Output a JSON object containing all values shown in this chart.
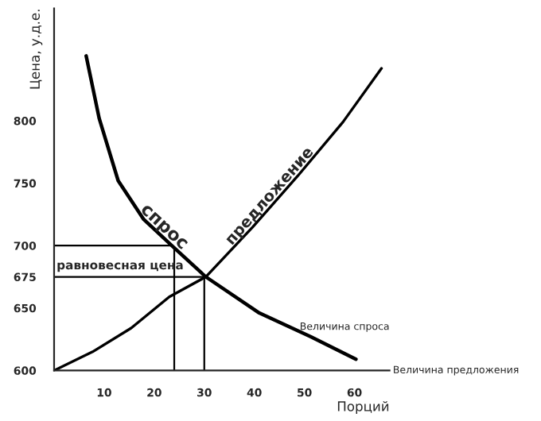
{
  "chart_data": {
    "type": "line",
    "ylabel": "Цена, у.д.е.",
    "xlabel": "Порций",
    "xlim": [
      0,
      67
    ],
    "ylim": [
      600,
      890
    ],
    "xticks": [
      10,
      20,
      30,
      40,
      50,
      60
    ],
    "yticks": [
      600,
      650,
      675,
      700,
      750,
      800
    ],
    "series": [
      {
        "name": "спрос",
        "color": "#000000",
        "x": [
          6.4,
          9,
          12.8,
          17.9,
          23.8,
          30.3,
          41,
          51.3,
          60.3
        ],
        "values": [
          852,
          802,
          752,
          721,
          699,
          675,
          646,
          627,
          609
        ]
      },
      {
        "name": "предложение",
        "color": "#000000",
        "x": [
          0,
          7.7,
          15.4,
          23,
          30.3,
          39.7,
          48.7,
          57.7,
          65.4
        ],
        "values": [
          600,
          615,
          634,
          659,
          675,
          715,
          756,
          799,
          842
        ]
      }
    ],
    "ref_lines": [
      {
        "axis": "y",
        "value": 700
      },
      {
        "axis": "y",
        "value": 675,
        "label": "равновесная цена"
      },
      {
        "axis": "x",
        "value": 24
      },
      {
        "axis": "x",
        "value": 30
      }
    ],
    "annotations": [
      "Величина спроса",
      "Величина предложения"
    ],
    "grid": false,
    "legend": false,
    "marker": "none",
    "line_style": "solid"
  }
}
